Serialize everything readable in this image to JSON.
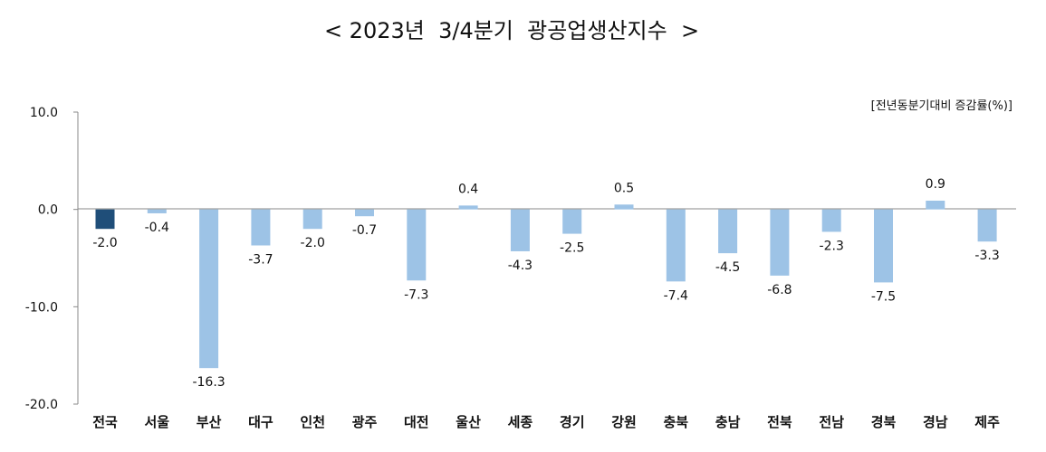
{
  "chart_data": {
    "type": "bar",
    "title": "< 2023년  3/4분기  광공업생산지수  >",
    "unit_label": "[전년동분기대비 증감률(%)]",
    "categories": [
      "전국",
      "서울",
      "부산",
      "대구",
      "인천",
      "광주",
      "대전",
      "울산",
      "세종",
      "경기",
      "강원",
      "충북",
      "충남",
      "전북",
      "전남",
      "경북",
      "경남",
      "제주"
    ],
    "values": [
      -2.0,
      -0.4,
      -16.3,
      -3.7,
      -2.0,
      -0.7,
      -7.3,
      0.4,
      -4.3,
      -2.5,
      0.5,
      -7.4,
      -4.5,
      -6.8,
      -2.3,
      -7.5,
      0.9,
      -3.3
    ],
    "value_labels": [
      "-2.0",
      "-0.4",
      "-16.3",
      "-3.7",
      "-2.0",
      "-0.7",
      "-7.3",
      "0.4",
      "-4.3",
      "-2.5",
      "0.5",
      "-7.4",
      "-4.5",
      "-6.8",
      "-2.3",
      "-7.5",
      "0.9",
      "-3.3"
    ],
    "y_ticks": [
      10.0,
      0.0,
      -10.0,
      -20.0
    ],
    "y_tick_labels": [
      "10.0",
      "0.0",
      "-10.0",
      "-20.0"
    ],
    "ylim": [
      -20,
      10
    ],
    "grid": false,
    "legend": "none",
    "colors": {
      "highlight": "#1F4E79",
      "bar": "#9DC3E6",
      "axis": "#888888"
    }
  }
}
